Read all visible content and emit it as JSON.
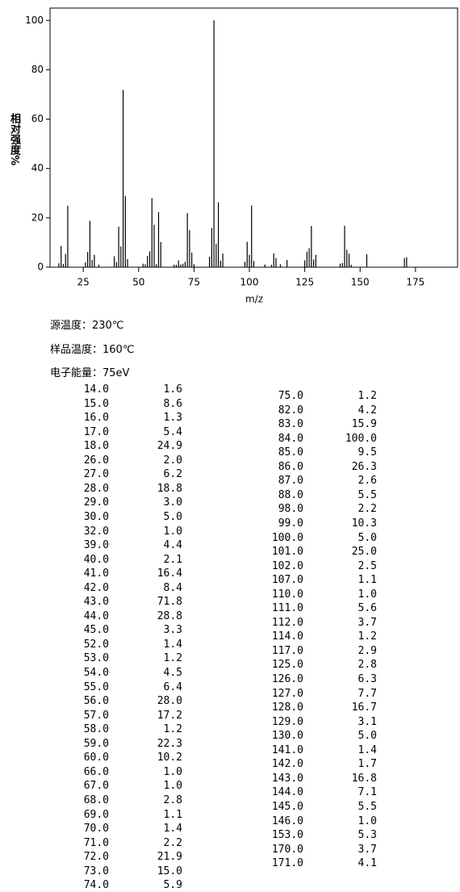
{
  "chart_data": {
    "type": "bar",
    "y_label": "相对强度%",
    "x_label": "m/z",
    "x": [
      14,
      15,
      16,
      17,
      18,
      26,
      27,
      28,
      29,
      30,
      32,
      39,
      40,
      41,
      42,
      43,
      44,
      45,
      52,
      53,
      54,
      55,
      56,
      57,
      58,
      59,
      60,
      66,
      67,
      68,
      69,
      70,
      71,
      72,
      73,
      74,
      75,
      82,
      83,
      84,
      85,
      86,
      87,
      88,
      98,
      99,
      100,
      101,
      102,
      107,
      110,
      111,
      112,
      114,
      117,
      125,
      126,
      127,
      128,
      129,
      130,
      141,
      142,
      143,
      144,
      145,
      146,
      153,
      170,
      171
    ],
    "x_labels": [
      "14.0",
      "15.0",
      "16.0",
      "17.0",
      "18.0",
      "26.0",
      "27.0",
      "28.0",
      "29.0",
      "30.0",
      "32.0",
      "39.0",
      "40.0",
      "41.0",
      "42.0",
      "43.0",
      "44.0",
      "45.0",
      "52.0",
      "53.0",
      "54.0",
      "55.0",
      "56.0",
      "57.0",
      "58.0",
      "59.0",
      "60.0",
      "66.0",
      "67.0",
      "68.0",
      "69.0",
      "70.0",
      "71.0",
      "72.0",
      "73.0",
      "74.0",
      "75.0",
      "82.0",
      "83.0",
      "84.0",
      "85.0",
      "86.0",
      "87.0",
      "88.0",
      "98.0",
      "99.0",
      "100.0",
      "101.0",
      "102.0",
      "107.0",
      "110.0",
      "111.0",
      "112.0",
      "114.0",
      "117.0",
      "125.0",
      "126.0",
      "127.0",
      "128.0",
      "129.0",
      "130.0",
      "141.0",
      "142.0",
      "143.0",
      "144.0",
      "145.0",
      "146.0",
      "153.0",
      "170.0",
      "171.0"
    ],
    "values": [
      1.6,
      8.6,
      1.3,
      5.4,
      24.9,
      2.0,
      6.2,
      18.8,
      3.0,
      5.0,
      1.0,
      4.4,
      2.1,
      16.4,
      8.4,
      71.8,
      28.8,
      3.3,
      1.4,
      1.2,
      4.5,
      6.4,
      28.0,
      17.2,
      1.2,
      22.3,
      10.2,
      1.0,
      1.0,
      2.8,
      1.1,
      1.4,
      2.2,
      21.9,
      15.0,
      5.9,
      1.2,
      4.2,
      15.9,
      100.0,
      9.5,
      26.3,
      2.6,
      5.5,
      2.2,
      10.3,
      5.0,
      25.0,
      2.5,
      1.1,
      1.0,
      5.6,
      3.7,
      1.2,
      2.9,
      2.8,
      6.3,
      7.7,
      16.7,
      3.1,
      5.0,
      1.4,
      1.7,
      16.8,
      7.1,
      5.5,
      1.0,
      5.3,
      3.7,
      4.1
    ],
    "value_labels": [
      "1.6",
      "8.6",
      "1.3",
      "5.4",
      "24.9",
      "2.0",
      "6.2",
      "18.8",
      "3.0",
      "5.0",
      "1.0",
      "4.4",
      "2.1",
      "16.4",
      "8.4",
      "71.8",
      "28.8",
      "3.3",
      "1.4",
      "1.2",
      "4.5",
      "6.4",
      "28.0",
      "17.2",
      "1.2",
      "22.3",
      "10.2",
      "1.0",
      "1.0",
      "2.8",
      "1.1",
      "1.4",
      "2.2",
      "21.9",
      "15.0",
      "5.9",
      "1.2",
      "4.2",
      "15.9",
      "100.0",
      "9.5",
      "26.3",
      "2.6",
      "5.5",
      "2.2",
      "10.3",
      "5.0",
      "25.0",
      "2.5",
      "1.1",
      "1.0",
      "5.6",
      "3.7",
      "1.2",
      "2.9",
      "2.8",
      "6.3",
      "7.7",
      "16.7",
      "3.1",
      "5.0",
      "1.4",
      "1.7",
      "16.8",
      "7.1",
      "5.5",
      "1.0",
      "5.3",
      "3.7",
      "4.1"
    ],
    "color": "#000000",
    "xlim": [
      10,
      194
    ],
    "xticks": [
      25,
      50,
      75,
      100,
      125,
      150,
      175
    ],
    "ylim": [
      0,
      105
    ],
    "yticks": [
      0,
      20,
      40,
      60,
      80,
      100
    ]
  },
  "info": [
    "源温度：230℃",
    "样品温度：160℃",
    "电子能量：75eV"
  ]
}
